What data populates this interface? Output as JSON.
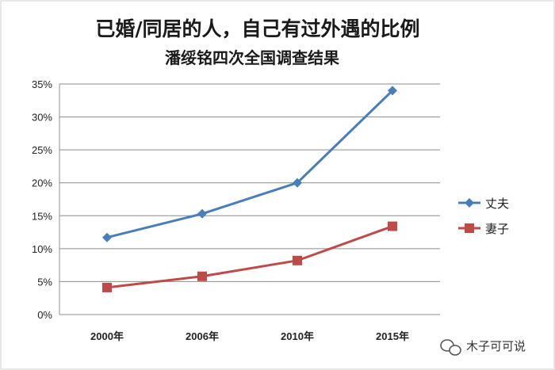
{
  "chart_data": {
    "type": "line",
    "title": "已婚/同居的人，自己有过外遇的比例",
    "subtitle": "潘绥铭四次全国调查结果",
    "categories": [
      "2000年",
      "2006年",
      "2010年",
      "2015年"
    ],
    "series": [
      {
        "name": "丈夫",
        "values": [
          11.7,
          15.3,
          20.0,
          34.0
        ],
        "color": "#4a7ebb",
        "marker": "diamond"
      },
      {
        "name": "妻子",
        "values": [
          4.1,
          5.8,
          8.2,
          13.4
        ],
        "color": "#be4b48",
        "marker": "square"
      }
    ],
    "ylim": [
      0,
      35
    ],
    "yticks": [
      "0%",
      "5%",
      "10%",
      "15%",
      "20%",
      "25%",
      "30%",
      "35%"
    ],
    "xlabel": "",
    "ylabel": "",
    "grid": true,
    "legend_position": "right"
  },
  "watermark": {
    "text": "木子可可说"
  }
}
